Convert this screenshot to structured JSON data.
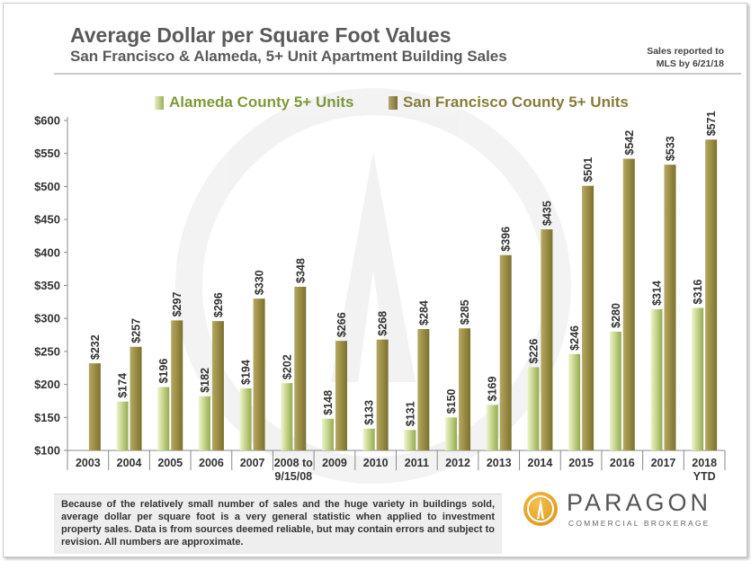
{
  "header": {
    "title": "Average Dollar per Square Foot Values",
    "subtitle": "San Francisco & Alameda, 5+ Unit Apartment Building Sales",
    "sales_note": "Sales reported to MLS by 6/21/18"
  },
  "colors": {
    "alameda": "#a9bc6b",
    "sf": "#9a8d44",
    "text": "#5a5a5a",
    "logo": "#e9a22b"
  },
  "chart_data": {
    "type": "bar",
    "title": "Average Dollar per Square Foot Values",
    "subtitle": "San Francisco & Alameda, 5+ Unit Apartment Building Sales",
    "xlabel": "",
    "ylabel": "",
    "ylim": [
      100,
      600
    ],
    "yticks": [
      100,
      150,
      200,
      250,
      300,
      350,
      400,
      450,
      500,
      550,
      600
    ],
    "ytick_labels": [
      "$100",
      "$150",
      "$200",
      "$250",
      "$300",
      "$350",
      "$400",
      "$450",
      "$500",
      "$550",
      "$600"
    ],
    "grid": false,
    "legend_position": "top",
    "categories": [
      [
        "2003"
      ],
      [
        "2004"
      ],
      [
        "2005"
      ],
      [
        "2006"
      ],
      [
        "2007"
      ],
      [
        "2008 to",
        "9/15/08"
      ],
      [
        "2009"
      ],
      [
        "2010"
      ],
      [
        "2011"
      ],
      [
        "2012"
      ],
      [
        "2013"
      ],
      [
        "2014"
      ],
      [
        "2015"
      ],
      [
        "2016"
      ],
      [
        "2017"
      ],
      [
        "2018",
        "YTD"
      ]
    ],
    "series": [
      {
        "name": "Alameda County 5+ Units",
        "values": [
          null,
          174,
          196,
          182,
          194,
          202,
          148,
          133,
          131,
          150,
          169,
          226,
          246,
          280,
          314,
          316
        ],
        "labels": [
          "",
          "$174",
          "$196",
          "$182",
          "$194",
          "$202",
          "$148",
          "$133",
          "$131",
          "$150",
          "$169",
          "$226",
          "$246",
          "$280",
          "$314",
          "$316"
        ]
      },
      {
        "name": "San Francisco County 5+ Units",
        "values": [
          232,
          257,
          297,
          296,
          330,
          348,
          266,
          268,
          284,
          285,
          396,
          435,
          501,
          542,
          533,
          571
        ],
        "labels": [
          "$232",
          "$257",
          "$297",
          "$296",
          "$330",
          "$348",
          "$266",
          "$268",
          "$284",
          "$285",
          "$396",
          "$435",
          "$501",
          "$542",
          "$533",
          "$571"
        ]
      }
    ]
  },
  "footer": {
    "disclaimer": "Because of the relatively small number of sales and the huge variety in buildings sold, average dollar per square foot is a very general statistic when applied to investment property sales. Data is from sources deemed reliable, but may contain errors and subject to revision. All numbers are approximate.",
    "logo_name": "PARAGON",
    "logo_tagline": "COMMERCIAL BROKERAGE"
  }
}
